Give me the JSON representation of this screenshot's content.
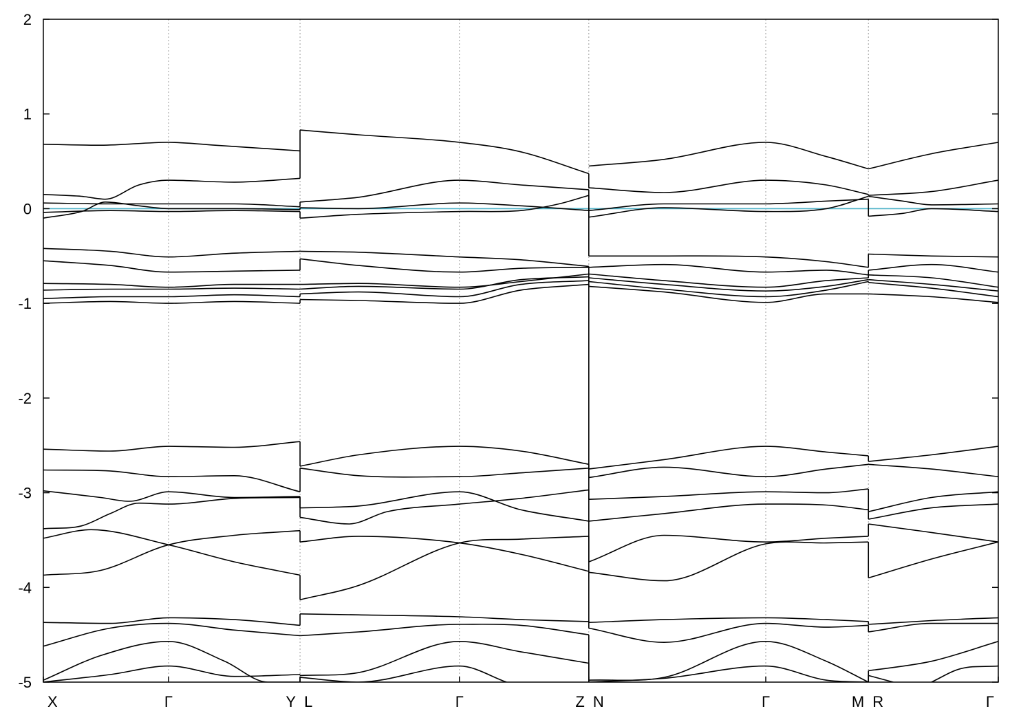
{
  "chart_data": {
    "type": "line",
    "title": "",
    "xlabel": "",
    "ylabel": "",
    "xlim": [
      0,
      10
    ],
    "ylim": [
      -5,
      2
    ],
    "yticks": [
      -5,
      -4,
      -3,
      -2,
      -1,
      0,
      1,
      2
    ],
    "grid": false,
    "legend": "none",
    "segments": [
      {
        "from": 0,
        "to": 2.688
      },
      {
        "from": 2.688,
        "to": 5.712
      },
      {
        "from": 5.712,
        "to": 8.64
      },
      {
        "from": 8.64,
        "to": 10
      }
    ],
    "high_symmetry_points": [
      {
        "x": 0,
        "label": "X",
        "align": "start"
      },
      {
        "x": 1.311,
        "label": "Γ",
        "align": "middle"
      },
      {
        "x": 2.688,
        "label": "Y",
        "align": "end"
      },
      {
        "x": 2.688,
        "label": "L",
        "align": "start"
      },
      {
        "x": 4.357,
        "label": "Γ",
        "align": "middle"
      },
      {
        "x": 5.712,
        "label": "Z",
        "align": "end"
      },
      {
        "x": 5.712,
        "label": "N",
        "align": "start"
      },
      {
        "x": 7.565,
        "label": "Γ",
        "align": "middle"
      },
      {
        "x": 8.64,
        "label": "M",
        "align": "end"
      },
      {
        "x": 8.64,
        "label": "R",
        "align": "start"
      },
      {
        "x": 10,
        "label": "Γ",
        "align": "end"
      }
    ],
    "fermi_level": {
      "y": 0,
      "color": "#4fb3c8"
    },
    "bands": [
      {
        "x": [
          0,
          0.6,
          1.311,
          1.8,
          2.688
        ],
        "y": [
          0.68,
          0.67,
          0.7,
          0.67,
          0.61
        ]
      },
      {
        "x": [
          0,
          0.4,
          0.65,
          1.0,
          1.311,
          2.0,
          2.688
        ],
        "y": [
          0.15,
          0.13,
          0.1,
          0.25,
          0.3,
          0.28,
          0.32
        ]
      },
      {
        "x": [
          0,
          0.7,
          1.311,
          2.0,
          2.688
        ],
        "y": [
          0.06,
          0.05,
          0.05,
          0.05,
          0.02
        ]
      },
      {
        "x": [
          0,
          0.4,
          0.65,
          1.0,
          1.311,
          2.0,
          2.688
        ],
        "y": [
          -0.1,
          -0.03,
          0.07,
          0.03,
          0.0,
          0.0,
          -0.01
        ]
      },
      {
        "x": [
          0,
          0.7,
          1.311,
          2.0,
          2.688
        ],
        "y": [
          -0.04,
          -0.02,
          -0.03,
          -0.02,
          -0.03
        ]
      },
      {
        "x": [
          0,
          0.7,
          1.311,
          2.0,
          2.688
        ],
        "y": [
          -0.42,
          -0.45,
          -0.51,
          -0.47,
          -0.45
        ]
      },
      {
        "x": [
          0,
          0.7,
          1.311,
          2.0,
          2.688
        ],
        "y": [
          -0.55,
          -0.6,
          -0.67,
          -0.66,
          -0.65
        ]
      },
      {
        "x": [
          0,
          0.7,
          1.311,
          2.0,
          2.688
        ],
        "y": [
          -0.79,
          -0.8,
          -0.83,
          -0.8,
          -0.8
        ]
      },
      {
        "x": [
          0,
          0.7,
          1.311,
          2.0,
          2.688
        ],
        "y": [
          -0.86,
          -0.85,
          -0.85,
          -0.84,
          -0.85
        ]
      },
      {
        "x": [
          0,
          0.7,
          1.311,
          2.0,
          2.688
        ],
        "y": [
          -0.95,
          -0.93,
          -0.93,
          -0.91,
          -0.93
        ]
      },
      {
        "x": [
          0,
          0.7,
          1.311,
          2.0,
          2.688
        ],
        "y": [
          -1.0,
          -0.98,
          -1.0,
          -0.98,
          -1.0
        ]
      },
      {
        "x": [
          0,
          0.7,
          1.311,
          2.0,
          2.688
        ],
        "y": [
          -2.54,
          -2.56,
          -2.51,
          -2.52,
          -2.46
        ]
      },
      {
        "x": [
          0,
          0.7,
          1.311,
          2.0,
          2.688
        ],
        "y": [
          -2.76,
          -2.77,
          -2.83,
          -2.82,
          -2.99
        ]
      },
      {
        "x": [
          0,
          0.6,
          0.9,
          1.311,
          2.0,
          2.688
        ],
        "y": [
          -2.98,
          -3.05,
          -3.09,
          -2.99,
          -3.05,
          -3.04
        ]
      },
      {
        "x": [
          0,
          0.4,
          0.7,
          1.0,
          1.311,
          2.0,
          2.688
        ],
        "y": [
          -3.38,
          -3.35,
          -3.22,
          -3.11,
          -3.12,
          -3.06,
          -3.05
        ]
      },
      {
        "x": [
          0,
          0.5,
          1.311,
          2.0,
          2.688
        ],
        "y": [
          -3.48,
          -3.39,
          -3.55,
          -3.73,
          -3.87
        ]
      },
      {
        "x": [
          0,
          0.6,
          1.311,
          2.0,
          2.688
        ],
        "y": [
          -3.87,
          -3.82,
          -3.55,
          -3.45,
          -3.4
        ]
      },
      {
        "x": [
          0,
          0.7,
          1.311,
          2.0,
          2.688
        ],
        "y": [
          -4.37,
          -4.38,
          -4.32,
          -4.34,
          -4.4
        ]
      },
      {
        "x": [
          0,
          0.7,
          1.311,
          2.0,
          2.688
        ],
        "y": [
          -4.62,
          -4.43,
          -4.38,
          -4.45,
          -4.51
        ]
      },
      {
        "x": [
          0,
          0.6,
          1.311,
          1.9,
          2.35,
          2.688
        ],
        "y": [
          -4.98,
          -4.72,
          -4.57,
          -4.78,
          -5.0,
          -5.0
        ]
      },
      {
        "x": [
          0,
          0.7,
          1.311,
          2.0,
          2.688
        ],
        "y": [
          -5.0,
          -4.92,
          -4.83,
          -4.94,
          -4.92
        ]
      },
      {
        "x": [
          2.688,
          3.3,
          4.357,
          5.0,
          5.712
        ],
        "y": [
          0.83,
          0.78,
          0.7,
          0.6,
          0.37
        ]
      },
      {
        "x": [
          2.688,
          3.3,
          4.357,
          5.0,
          5.712
        ],
        "y": [
          0.07,
          0.12,
          0.3,
          0.25,
          0.2
        ]
      },
      {
        "x": [
          2.688,
          3.3,
          4.357,
          5.0,
          5.712
        ],
        "y": [
          0.01,
          0.0,
          0.06,
          0.03,
          -0.02
        ]
      },
      {
        "x": [
          2.688,
          3.3,
          4.357,
          5.0,
          5.4,
          5.712
        ],
        "y": [
          -0.1,
          -0.06,
          -0.03,
          -0.02,
          0.05,
          0.14
        ]
      },
      {
        "x": [
          2.688,
          3.3,
          4.357,
          5.0,
          5.712
        ],
        "y": [
          -0.45,
          -0.46,
          -0.51,
          -0.54,
          -0.61
        ]
      },
      {
        "x": [
          2.688,
          3.3,
          4.357,
          5.0,
          5.712
        ],
        "y": [
          -0.53,
          -0.6,
          -0.67,
          -0.63,
          -0.62
        ]
      },
      {
        "x": [
          2.688,
          3.3,
          4.357,
          5.0,
          5.712
        ],
        "y": [
          -0.8,
          -0.79,
          -0.83,
          -0.77,
          -0.69
        ]
      },
      {
        "x": [
          2.688,
          3.3,
          4.357,
          5.0,
          5.712
        ],
        "y": [
          -0.85,
          -0.82,
          -0.85,
          -0.75,
          -0.72
        ]
      },
      {
        "x": [
          2.688,
          3.3,
          4.357,
          5.0,
          5.712
        ],
        "y": [
          -0.9,
          -0.88,
          -0.93,
          -0.8,
          -0.76
        ]
      },
      {
        "x": [
          2.688,
          3.3,
          4.357,
          5.0,
          5.712
        ],
        "y": [
          -0.96,
          -0.97,
          -1.0,
          -0.86,
          -0.8
        ]
      },
      {
        "x": [
          2.688,
          3.3,
          4.357,
          5.0,
          5.712
        ],
        "y": [
          -2.72,
          -2.6,
          -2.51,
          -2.56,
          -2.7
        ]
      },
      {
        "x": [
          2.688,
          3.3,
          4.357,
          5.0,
          5.712
        ],
        "y": [
          -2.74,
          -2.82,
          -2.83,
          -2.79,
          -2.74
        ]
      },
      {
        "x": [
          2.688,
          3.3,
          4.357,
          5.0,
          5.712
        ],
        "y": [
          -3.16,
          -3.14,
          -2.99,
          -3.18,
          -3.3
        ]
      },
      {
        "x": [
          2.688,
          3.2,
          3.6,
          4.357,
          5.0,
          5.712
        ],
        "y": [
          -3.26,
          -3.33,
          -3.2,
          -3.12,
          -3.06,
          -2.97
        ]
      },
      {
        "x": [
          2.688,
          3.3,
          4.357,
          5.0,
          5.712
        ],
        "y": [
          -3.52,
          -3.46,
          -3.53,
          -3.65,
          -3.83
        ]
      },
      {
        "x": [
          2.688,
          3.3,
          4.357,
          5.0,
          5.712
        ],
        "y": [
          -4.13,
          -3.98,
          -3.53,
          -3.49,
          -3.46
        ]
      },
      {
        "x": [
          2.688,
          3.3,
          4.357,
          5.0,
          5.712
        ],
        "y": [
          -4.28,
          -4.29,
          -4.31,
          -4.34,
          -4.36
        ]
      },
      {
        "x": [
          2.688,
          3.3,
          4.357,
          5.0,
          5.712
        ],
        "y": [
          -4.51,
          -4.47,
          -4.39,
          -4.4,
          -4.5
        ]
      },
      {
        "x": [
          2.688,
          3.3,
          4.357,
          5.0,
          5.712
        ],
        "y": [
          -4.93,
          -4.9,
          -4.57,
          -4.68,
          -4.8
        ]
      },
      {
        "x": [
          2.688,
          3.3,
          4.357,
          4.85
        ],
        "y": [
          -4.95,
          -5.0,
          -4.83,
          -5.0
        ]
      },
      {
        "x": [
          5.712,
          6.5,
          7.565,
          8.2,
          8.64
        ],
        "y": [
          0.45,
          0.52,
          0.7,
          0.55,
          0.42
        ]
      },
      {
        "x": [
          5.712,
          6.5,
          7.565,
          8.2,
          8.64
        ],
        "y": [
          0.22,
          0.17,
          0.3,
          0.25,
          0.15
        ]
      },
      {
        "x": [
          5.712,
          6.5,
          7.565,
          8.2,
          8.64
        ],
        "y": [
          -0.02,
          0.05,
          0.05,
          0.08,
          0.1
        ]
      },
      {
        "x": [
          5.712,
          6.5,
          7.565,
          8.2,
          8.64
        ],
        "y": [
          -0.09,
          0.01,
          -0.03,
          0.0,
          0.13
        ]
      },
      {
        "x": [
          5.712,
          6.5,
          7.565,
          8.2,
          8.64
        ],
        "y": [
          -0.5,
          -0.5,
          -0.51,
          -0.56,
          -0.62
        ]
      },
      {
        "x": [
          5.712,
          6.5,
          7.565,
          8.2,
          8.64
        ],
        "y": [
          -0.62,
          -0.59,
          -0.67,
          -0.65,
          -0.7
        ]
      },
      {
        "x": [
          5.712,
          6.5,
          7.565,
          8.2,
          8.64
        ],
        "y": [
          -0.69,
          -0.76,
          -0.83,
          -0.76,
          -0.73
        ]
      },
      {
        "x": [
          5.712,
          6.5,
          7.565,
          8.2,
          8.64
        ],
        "y": [
          -0.73,
          -0.8,
          -0.87,
          -0.82,
          -0.75
        ]
      },
      {
        "x": [
          5.712,
          6.5,
          7.565,
          8.2,
          8.64
        ],
        "y": [
          -0.77,
          -0.85,
          -0.93,
          -0.86,
          -0.77
        ]
      },
      {
        "x": [
          5.712,
          6.5,
          7.565,
          8.2,
          8.64
        ],
        "y": [
          -0.82,
          -0.88,
          -0.99,
          -0.9,
          -0.9
        ]
      },
      {
        "x": [
          5.712,
          6.5,
          7.565,
          8.2,
          8.64
        ],
        "y": [
          -2.75,
          -2.65,
          -2.51,
          -2.57,
          -2.61
        ]
      },
      {
        "x": [
          5.712,
          6.5,
          7.565,
          8.2,
          8.64
        ],
        "y": [
          -2.84,
          -2.73,
          -2.83,
          -2.75,
          -2.7
        ]
      },
      {
        "x": [
          5.712,
          6.5,
          7.565,
          8.2,
          8.64
        ],
        "y": [
          -3.07,
          -3.04,
          -2.99,
          -3.0,
          -2.96
        ]
      },
      {
        "x": [
          5.712,
          6.5,
          7.565,
          8.2,
          8.64
        ],
        "y": [
          -3.3,
          -3.22,
          -3.12,
          -3.13,
          -3.18
        ]
      },
      {
        "x": [
          5.712,
          6.5,
          7.565,
          8.2,
          8.64
        ],
        "y": [
          -3.73,
          -3.45,
          -3.52,
          -3.48,
          -3.46
        ]
      },
      {
        "x": [
          5.712,
          6.5,
          7.565,
          8.2,
          8.64
        ],
        "y": [
          -3.84,
          -3.93,
          -3.54,
          -3.53,
          -3.52
        ]
      },
      {
        "x": [
          5.712,
          6.5,
          7.565,
          8.2,
          8.64
        ],
        "y": [
          -4.37,
          -4.34,
          -4.32,
          -4.34,
          -4.36
        ]
      },
      {
        "x": [
          5.712,
          6.5,
          7.565,
          8.2,
          8.64
        ],
        "y": [
          -4.43,
          -4.58,
          -4.38,
          -4.42,
          -4.4
        ]
      },
      {
        "x": [
          5.712,
          6.5,
          7.565,
          8.2,
          8.64
        ],
        "y": [
          -4.98,
          -4.95,
          -4.57,
          -4.78,
          -5.0
        ]
      },
      {
        "x": [
          5.712,
          6.5,
          7.565,
          8.2,
          8.64
        ],
        "y": [
          -5.0,
          -4.96,
          -4.83,
          -4.98,
          -5.0
        ]
      },
      {
        "x": [
          8.64,
          9.3,
          10
        ],
        "y": [
          0.42,
          0.58,
          0.7
        ]
      },
      {
        "x": [
          8.64,
          9.3,
          10
        ],
        "y": [
          0.14,
          0.18,
          0.3
        ]
      },
      {
        "x": [
          8.64,
          9.0,
          9.3,
          10
        ],
        "y": [
          0.13,
          0.08,
          0.04,
          0.05
        ]
      },
      {
        "x": [
          8.64,
          9.0,
          9.3,
          10
        ],
        "y": [
          -0.08,
          -0.05,
          0.0,
          -0.03
        ]
      },
      {
        "x": [
          8.64,
          9.3,
          10
        ],
        "y": [
          -0.48,
          -0.5,
          -0.51
        ]
      },
      {
        "x": [
          8.64,
          9.3,
          10
        ],
        "y": [
          -0.65,
          -0.59,
          -0.67
        ]
      },
      {
        "x": [
          8.64,
          9.3,
          10
        ],
        "y": [
          -0.7,
          -0.73,
          -0.83
        ]
      },
      {
        "x": [
          8.64,
          9.3,
          10
        ],
        "y": [
          -0.75,
          -0.8,
          -0.87
        ]
      },
      {
        "x": [
          8.64,
          9.3,
          10
        ],
        "y": [
          -0.78,
          -0.84,
          -0.93
        ]
      },
      {
        "x": [
          8.64,
          9.3,
          10
        ],
        "y": [
          -0.9,
          -0.93,
          -0.99
        ]
      },
      {
        "x": [
          8.64,
          9.3,
          10
        ],
        "y": [
          -2.67,
          -2.6,
          -2.51
        ]
      },
      {
        "x": [
          8.64,
          9.3,
          10
        ],
        "y": [
          -2.7,
          -2.75,
          -2.83
        ]
      },
      {
        "x": [
          8.64,
          9.3,
          10
        ],
        "y": [
          -3.2,
          -3.05,
          -2.99
        ]
      },
      {
        "x": [
          8.64,
          9.3,
          10
        ],
        "y": [
          -3.28,
          -3.16,
          -3.12
        ]
      },
      {
        "x": [
          8.64,
          9.3,
          10
        ],
        "y": [
          -3.33,
          -3.42,
          -3.52
        ]
      },
      {
        "x": [
          8.64,
          9.3,
          10
        ],
        "y": [
          -3.9,
          -3.7,
          -3.52
        ]
      },
      {
        "x": [
          8.64,
          9.3,
          10
        ],
        "y": [
          -4.39,
          -4.35,
          -4.32
        ]
      },
      {
        "x": [
          8.64,
          9.3,
          10
        ],
        "y": [
          -4.47,
          -4.38,
          -4.38
        ]
      },
      {
        "x": [
          8.64,
          9.3,
          10
        ],
        "y": [
          -4.88,
          -4.78,
          -4.57
        ]
      },
      {
        "x": [
          8.64,
          8.9
        ],
        "y": [
          -4.93,
          -5.0
        ]
      },
      {
        "x": [
          9.3,
          9.6,
          10
        ],
        "y": [
          -5.0,
          -4.86,
          -4.83
        ]
      }
    ]
  }
}
